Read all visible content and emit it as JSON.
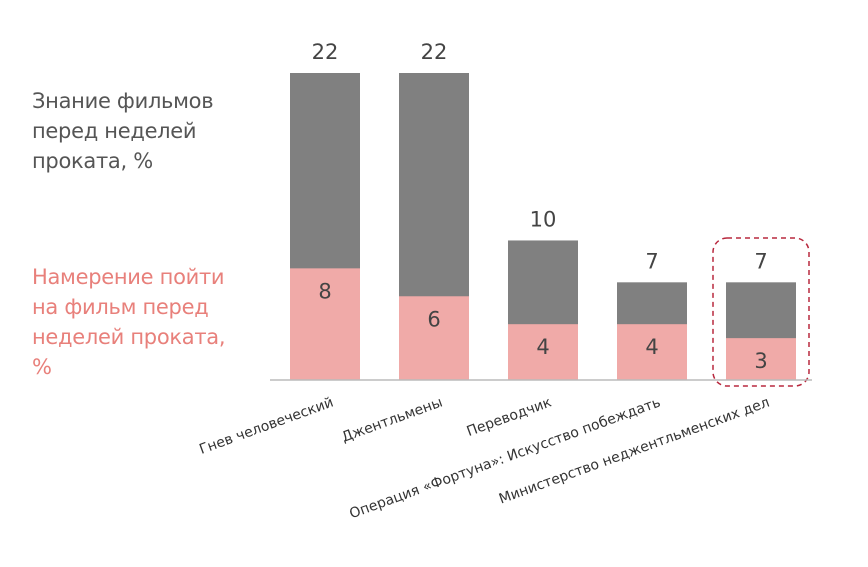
{
  "chart_data": {
    "type": "bar",
    "categories": [
      "Гнев человеческий",
      "Джентльмены",
      "Переводчик",
      "Операция «Фортуна»: Искусство побеждать",
      "Министерство неджентльменских дел"
    ],
    "series": [
      {
        "name": "Знание фильмов перед неделей проката, %",
        "color": "#808080",
        "values": [
          22,
          22,
          10,
          7,
          7
        ]
      },
      {
        "name": "Намерение пойти на фильм перед неделей проката, %",
        "color": "#f0aaa8",
        "values": [
          8,
          6,
          4,
          4,
          3
        ]
      }
    ]
  }
}
